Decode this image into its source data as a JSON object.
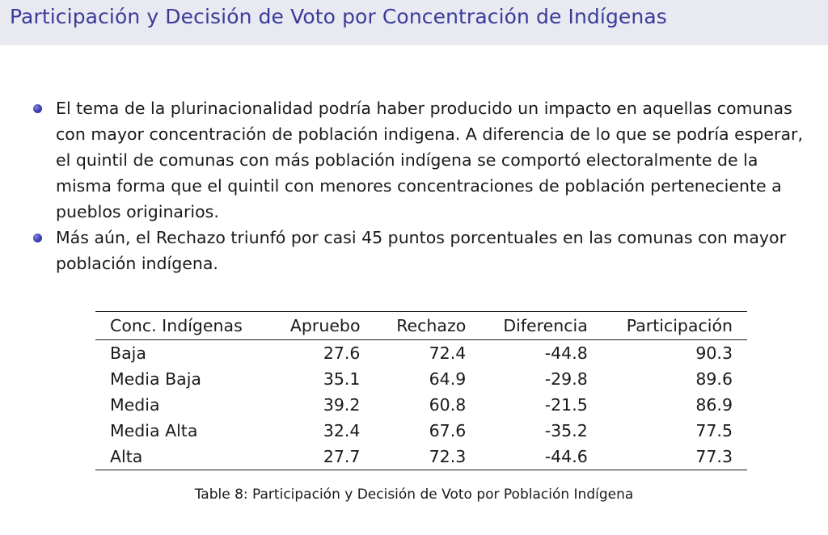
{
  "frame": {
    "title": "Participación y Decisión de Voto por Concentración de Indígenas"
  },
  "bullets": [
    "El tema de la plurinacionalidad podría haber producido un impacto en aquellas comunas con mayor concentración de población indigena. A diferencia de lo que se podría esperar, el quintil de comunas con más población indígena se comportó electoralmente de la misma forma que el quintil con menores concentraciones de población perteneciente a pueblos originarios.",
    "Más aún, el Rechazo triunfó por casi 45 puntos porcentuales en las comunas con mayor población indígena."
  ],
  "table": {
    "headers": [
      "Conc. Indígenas",
      "Apruebo",
      "Rechazo",
      "Diferencia",
      "Participación"
    ],
    "rows": [
      [
        "Baja",
        "27.6",
        "72.4",
        "-44.8",
        "90.3"
      ],
      [
        "Media Baja",
        "35.1",
        "64.9",
        "-29.8",
        "89.6"
      ],
      [
        "Media",
        "39.2",
        "60.8",
        "-21.5",
        "86.9"
      ],
      [
        "Media Alta",
        "32.4",
        "67.6",
        "-35.2",
        "77.5"
      ],
      [
        "Alta",
        "27.7",
        "72.3",
        "-44.6",
        "77.3"
      ]
    ],
    "caption": "Table 8: Participación y Decisión de Voto por Población Indígena"
  },
  "colors": {
    "title": "#3b3b9a",
    "title_bar": "#e9e9f2",
    "bullet": "#4646b8"
  }
}
